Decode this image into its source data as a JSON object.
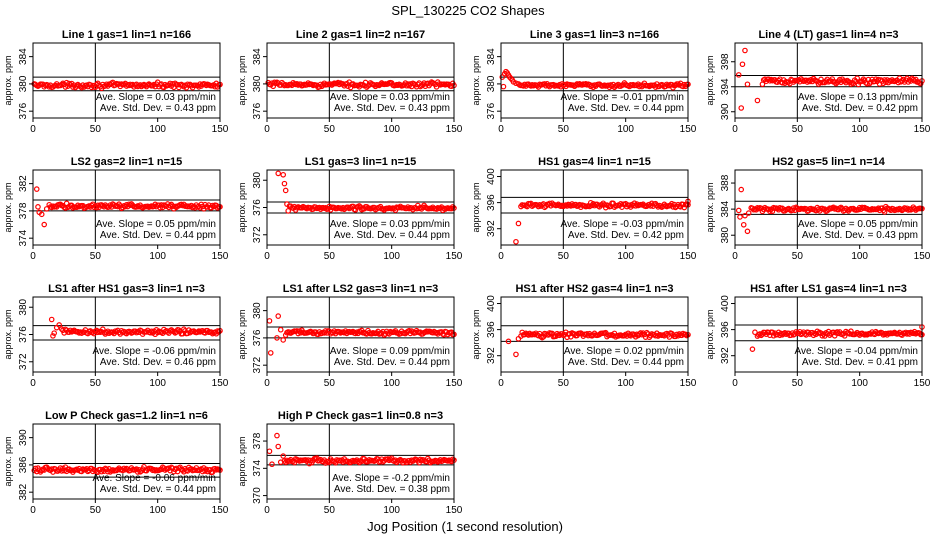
{
  "figure": {
    "title": "SPL_130225  CO2 Shapes",
    "xlabel": "Jog Position (1 second resolution)"
  },
  "chart_data": [
    {
      "type": "scatter",
      "title": "Line 1 gas=1 lin=1 n=166",
      "ylabel": "approx. ppm",
      "xlim": [
        0,
        150
      ],
      "ylim": [
        375,
        386
      ],
      "xticks": [
        0,
        50,
        100,
        150
      ],
      "yticks": [
        376,
        380,
        384
      ],
      "vline": 50,
      "hlines": [
        381,
        379
      ],
      "baseline": 379.8,
      "noise": 0.25,
      "outliers": [],
      "point_color": "#ff0000",
      "stats": [
        "Ave. Slope =  0.03  ppm/min",
        "Ave. Std. Dev. =  0.43  ppm"
      ]
    },
    {
      "type": "scatter",
      "title": "Line 2 gas=1 lin=2 n=167",
      "ylabel": "approx. ppm",
      "xlim": [
        0,
        150
      ],
      "ylim": [
        375,
        386
      ],
      "xticks": [
        0,
        50,
        100,
        150
      ],
      "yticks": [
        376,
        380,
        384
      ],
      "vline": 50,
      "hlines": [
        381,
        379
      ],
      "baseline": 379.9,
      "noise": 0.25,
      "outliers": [],
      "point_color": "#ff0000",
      "stats": [
        "Ave. Slope =  0.03  ppm/min",
        "Ave. Std. Dev. =  0.43  ppm"
      ]
    },
    {
      "type": "scatter",
      "title": "Line 3 gas=1 lin=3 n=166",
      "ylabel": "approx. ppm",
      "xlim": [
        0,
        150
      ],
      "ylim": [
        375,
        386
      ],
      "xticks": [
        0,
        50,
        100,
        150
      ],
      "yticks": [
        376,
        380,
        384
      ],
      "vline": 50,
      "hlines": [
        381,
        379
      ],
      "baseline": 379.8,
      "noise": 0.2,
      "outliers": [
        [
          1,
          381.0
        ],
        [
          2,
          379.6
        ],
        [
          3,
          381.5
        ],
        [
          4,
          381.8
        ],
        [
          5,
          381.6
        ],
        [
          6,
          381.3
        ],
        [
          7,
          381.0
        ],
        [
          8,
          380.8
        ],
        [
          9,
          380.6
        ],
        [
          10,
          380.3
        ],
        [
          12,
          380.1
        ],
        [
          14,
          380.0
        ]
      ],
      "point_color": "#ff0000",
      "stats": [
        "Ave. Slope = -0.01  ppm/min",
        "Ave. Std. Dev. =  0.44  ppm"
      ]
    },
    {
      "type": "scatter",
      "title": "Line 4 (LT) gas=1 lin=4 n=3",
      "ylabel": "approx. ppm",
      "xlim": [
        0,
        150
      ],
      "ylim": [
        389,
        401
      ],
      "xticks": [
        0,
        50,
        100,
        150
      ],
      "yticks": [
        390,
        394,
        398
      ],
      "vline": 50,
      "hlines": [
        395.8,
        394
      ],
      "baseline": 394.9,
      "noise": 0.35,
      "outliers": [
        [
          5,
          390.6
        ],
        [
          3,
          395.9
        ],
        [
          6,
          397.6
        ],
        [
          8,
          399.8
        ],
        [
          10,
          394.4
        ],
        [
          18,
          391.8
        ],
        [
          22,
          394.4
        ]
      ],
      "point_color": "#ff0000",
      "stats": [
        "Ave. Slope =  0.13  ppm/min",
        "Ave. Std. Dev. =  0.42  ppm"
      ]
    },
    {
      "type": "scatter",
      "title": "LS2 gas=2 lin=1 n=15",
      "ylabel": "approx. ppm",
      "xlim": [
        0,
        150
      ],
      "ylim": [
        373,
        384
      ],
      "xticks": [
        0,
        50,
        100,
        150
      ],
      "yticks": [
        374,
        378,
        382
      ],
      "vline": 50,
      "hlines": [
        379.6,
        378
      ],
      "baseline": 378.7,
      "noise": 0.25,
      "outliers": [
        [
          3,
          381.2
        ],
        [
          4,
          378.6
        ],
        [
          5,
          377.8
        ],
        [
          7,
          377.5
        ],
        [
          9,
          376.0
        ],
        [
          11,
          378.3
        ],
        [
          13,
          378.9
        ]
      ],
      "point_color": "#ff0000",
      "stats": [
        "Ave. Slope =  0.05  ppm/min",
        "Ave. Std. Dev. =  0.44  ppm"
      ]
    },
    {
      "type": "scatter",
      "title": "LS1 gas=3 lin=1 n=15",
      "ylabel": "approx. ppm",
      "xlim": [
        0,
        150
      ],
      "ylim": [
        370.5,
        381.5
      ],
      "xticks": [
        0,
        50,
        100,
        150
      ],
      "yticks": [
        372,
        376,
        380
      ],
      "vline": 50,
      "hlines": [
        376.8,
        375.2
      ],
      "baseline": 375.9,
      "noise": 0.25,
      "outliers": [
        [
          9,
          381.0
        ],
        [
          13,
          380.8
        ],
        [
          14,
          379.5
        ],
        [
          15,
          378.5
        ],
        [
          16,
          376.5
        ],
        [
          17,
          375.5
        ],
        [
          18,
          376.2
        ]
      ],
      "point_color": "#ff0000",
      "stats": [
        "Ave. Slope =  0.03  ppm/min",
        "Ave. Std. Dev. =  0.44  ppm"
      ]
    },
    {
      "type": "scatter",
      "title": "HS1 gas=4 lin=1 n=15",
      "ylabel": "approx. ppm",
      "xlim": [
        0,
        150
      ],
      "ylim": [
        389.5,
        401
      ],
      "xticks": [
        0,
        50,
        100,
        150
      ],
      "yticks": [
        392,
        396,
        400
      ],
      "vline": 50,
      "hlines": [
        396.8,
        394.4
      ],
      "baseline": 395.6,
      "noise": 0.25,
      "outliers": [
        [
          12,
          390.0
        ],
        [
          14,
          392.8
        ],
        [
          16,
          395.4
        ],
        [
          150,
          396.2
        ]
      ],
      "point_color": "#ff0000",
      "stats": [
        "Ave. Slope = -0.03  ppm/min",
        "Ave. Std. Dev. =  0.42  ppm"
      ]
    },
    {
      "type": "scatter",
      "title": "HS2 gas=5 lin=1 n=14",
      "ylabel": "approx. ppm",
      "xlim": [
        0,
        150
      ],
      "ylim": [
        378.5,
        390
      ],
      "xticks": [
        0,
        50,
        100,
        150
      ],
      "yticks": [
        380,
        384,
        388
      ],
      "vline": 50,
      "hlines": [
        385.2,
        383.2
      ],
      "baseline": 384.0,
      "noise": 0.25,
      "outliers": [
        [
          3,
          383.8
        ],
        [
          4,
          382.8
        ],
        [
          5,
          387.0
        ],
        [
          7,
          381.6
        ],
        [
          8,
          383.0
        ],
        [
          10,
          380.6
        ],
        [
          11,
          383.4
        ],
        [
          13,
          384.2
        ]
      ],
      "point_color": "#ff0000",
      "stats": [
        "Ave. Slope =  0.05  ppm/min",
        "Ave. Std. Dev. =  0.43  ppm"
      ]
    },
    {
      "type": "scatter",
      "title": "LS1 after HS1 gas=3 lin=1 n=3",
      "ylabel": "approx. ppm",
      "xlim": [
        0,
        150
      ],
      "ylim": [
        370.5,
        381.5
      ],
      "xticks": [
        0,
        50,
        100,
        150
      ],
      "yticks": [
        372,
        376,
        380
      ],
      "vline": 50,
      "hlines": [
        377.3,
        375.2
      ],
      "baseline": 376.4,
      "noise": 0.25,
      "outliers": [
        [
          15,
          378.2
        ],
        [
          16,
          375.8
        ],
        [
          17,
          376.2
        ],
        [
          19,
          377.0
        ],
        [
          21,
          377.4
        ],
        [
          23,
          376.8
        ]
      ],
      "point_color": "#ff0000",
      "stats": [
        "Ave. Slope = -0.06  ppm/min",
        "Ave. Std. Dev. =  0.46  ppm"
      ]
    },
    {
      "type": "scatter",
      "title": "LS1 after LS2 gas=3 lin=1 n=3",
      "ylabel": "approx. ppm",
      "xlim": [
        0,
        150
      ],
      "ylim": [
        371,
        382
      ],
      "xticks": [
        0,
        50,
        100,
        150
      ],
      "yticks": [
        372,
        376,
        380
      ],
      "vline": 50,
      "hlines": [
        377.6,
        376
      ],
      "baseline": 376.8,
      "noise": 0.25,
      "outliers": [
        [
          2,
          378.5
        ],
        [
          3,
          373.8
        ],
        [
          8,
          376.0
        ],
        [
          9,
          379.2
        ],
        [
          11,
          377.2
        ],
        [
          13,
          375.7
        ],
        [
          15,
          376.4
        ]
      ],
      "point_color": "#ff0000",
      "stats": [
        "Ave. Slope =  0.09  ppm/min",
        "Ave. Std. Dev. =  0.44  ppm"
      ]
    },
    {
      "type": "scatter",
      "title": "HS1 after HS2 gas=4 lin=1 n=3",
      "ylabel": "approx. ppm",
      "xlim": [
        0,
        150
      ],
      "ylim": [
        389.5,
        401
      ],
      "xticks": [
        0,
        50,
        100,
        150
      ],
      "yticks": [
        392,
        396,
        400
      ],
      "vline": 50,
      "hlines": [
        396.6,
        394.2
      ],
      "baseline": 395.2,
      "noise": 0.25,
      "outliers": [
        [
          6,
          394.2
        ],
        [
          12,
          392.2
        ],
        [
          14,
          394.6
        ],
        [
          16,
          395.0
        ]
      ],
      "point_color": "#ff0000",
      "stats": [
        "Ave. Slope =  0.02  ppm/min",
        "Ave. Std. Dev. =  0.44  ppm"
      ]
    },
    {
      "type": "scatter",
      "title": "HS1 after LS1 gas=4 lin=1 n=3",
      "ylabel": "approx. ppm",
      "xlim": [
        0,
        150
      ],
      "ylim": [
        389.5,
        401
      ],
      "xticks": [
        0,
        50,
        100,
        150
      ],
      "yticks": [
        392,
        396,
        400
      ],
      "vline": 50,
      "hlines": [
        396.7,
        394.3
      ],
      "baseline": 395.4,
      "noise": 0.25,
      "outliers": [
        [
          14,
          393.0
        ],
        [
          16,
          395.6
        ],
        [
          18,
          395.0
        ],
        [
          150,
          396.4
        ]
      ],
      "point_color": "#ff0000",
      "stats": [
        "Ave. Slope = -0.04  ppm/min",
        "Ave. Std. Dev. =  0.41  ppm"
      ]
    },
    {
      "type": "scatter",
      "title": "Low P Check gas=1.2 lin=1 n=6",
      "ylabel": "approx. ppm",
      "xlim": [
        0,
        150
      ],
      "ylim": [
        381,
        392
      ],
      "xticks": [
        0,
        50,
        100,
        150
      ],
      "yticks": [
        382,
        386,
        390
      ],
      "vline": 50,
      "hlines": [
        386.2,
        384.2
      ],
      "baseline": 385.3,
      "noise": 0.25,
      "outliers": [],
      "point_color": "#ff0000",
      "stats": [
        "Ave. Slope = -0.06  ppm/min",
        "Ave. Std. Dev. =  0.44  ppm"
      ]
    },
    {
      "type": "scatter",
      "title": "High P Check gas=1 lin=0.8 n=3",
      "ylabel": "approx. ppm",
      "xlim": [
        0,
        150
      ],
      "ylim": [
        369.5,
        380.5
      ],
      "xticks": [
        0,
        50,
        100,
        150
      ],
      "yticks": [
        370,
        374,
        378
      ],
      "vline": 50,
      "hlines": [
        375.9,
        374.5
      ],
      "baseline": 375.1,
      "noise": 0.25,
      "outliers": [
        [
          2,
          376.5
        ],
        [
          4,
          374.6
        ],
        [
          8,
          378.8
        ],
        [
          9,
          377.2
        ],
        [
          11,
          374.9
        ],
        [
          13,
          375.8
        ]
      ],
      "point_color": "#ff0000",
      "stats": [
        "Ave. Slope = -0.2  ppm/min",
        "Ave. Std. Dev. =  0.38  ppm"
      ]
    }
  ]
}
